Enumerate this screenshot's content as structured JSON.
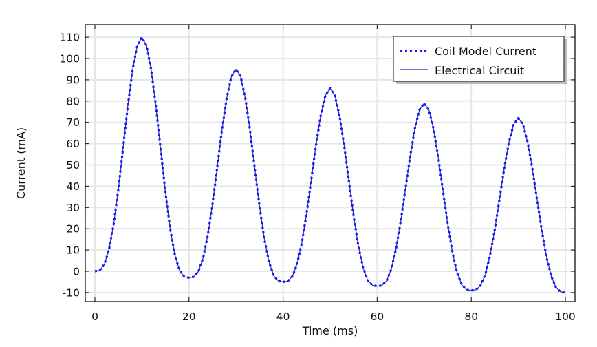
{
  "chart_data": {
    "type": "line",
    "title": "",
    "xlabel": "Time (ms)",
    "ylabel": "Current (mA)",
    "xlim": [
      -2,
      102
    ],
    "ylim": [
      -14.5,
      116
    ],
    "xticks": [
      0,
      20,
      40,
      60,
      80,
      100
    ],
    "yticks": [
      -10,
      0,
      10,
      20,
      30,
      40,
      50,
      60,
      70,
      80,
      90,
      100,
      110
    ],
    "grid": true,
    "legend_position": "top-right",
    "x": [
      0,
      1,
      2,
      3,
      4,
      5,
      6,
      7,
      8,
      9,
      10,
      11,
      12,
      13,
      14,
      15,
      16,
      17,
      18,
      19,
      20,
      21,
      22,
      23,
      24,
      25,
      26,
      27,
      28,
      29,
      30,
      31,
      32,
      33,
      34,
      35,
      36,
      37,
      38,
      39,
      40,
      41,
      42,
      43,
      44,
      45,
      46,
      47,
      48,
      49,
      50,
      51,
      52,
      53,
      54,
      55,
      56,
      57,
      58,
      59,
      60,
      61,
      62,
      63,
      64,
      65,
      66,
      67,
      68,
      69,
      70,
      71,
      72,
      73,
      74,
      75,
      76,
      77,
      78,
      79,
      80,
      81,
      82,
      83,
      84,
      85,
      86,
      87,
      88,
      89,
      90,
      91,
      92,
      93,
      94,
      95,
      96,
      97,
      98,
      99,
      100
    ],
    "series": [
      {
        "name": "Coil Model Current",
        "style": "dotted",
        "color": "#1414ff",
        "values": [
          0,
          0.4,
          3.2,
          10.3,
          22.3,
          38.9,
          58.2,
          77.8,
          94.6,
          106,
          110,
          105.9,
          94.2,
          76.9,
          56.8,
          37.0,
          19.9,
          7.6,
          0.3,
          -2.6,
          -3,
          -2.6,
          -0.1,
          6.2,
          16.9,
          31.7,
          48.9,
          66.3,
          81.3,
          91.4,
          95,
          91.4,
          81.0,
          65.7,
          48.0,
          30.4,
          15.3,
          4.4,
          -2.0,
          -4.6,
          -5,
          -4.7,
          -2.3,
          3.5,
          13.5,
          27.2,
          43.2,
          59.4,
          73.3,
          82.7,
          86,
          82.6,
          73.0,
          58.8,
          42.2,
          25.9,
          11.9,
          1.7,
          -4.3,
          -6.6,
          -7,
          -6.7,
          -4.5,
          1.0,
          10.5,
          23.4,
          38.5,
          53.8,
          67.0,
          75.9,
          79,
          75.8,
          66.7,
          53.3,
          37.6,
          22.1,
          8.9,
          -0.8,
          -6.4,
          -8.7,
          -9,
          -8.7,
          -6.6,
          -1.4,
          7.5,
          19.6,
          33.9,
          48.3,
          60.7,
          69.0,
          72,
          69.0,
          60.5,
          48.0,
          33.4,
          19.0,
          6.7,
          -2.3,
          -7.6,
          -9.7,
          -10
        ]
      },
      {
        "name": "Electrical Circuit",
        "style": "solid",
        "color": "#2a2ab0",
        "values": [
          0,
          0.4,
          3.2,
          10.3,
          22.3,
          38.9,
          58.2,
          77.8,
          94.6,
          106,
          110,
          105.9,
          94.2,
          76.9,
          56.8,
          37.0,
          19.9,
          7.6,
          0.3,
          -2.6,
          -3,
          -2.6,
          -0.1,
          6.2,
          16.9,
          31.7,
          48.9,
          66.3,
          81.3,
          91.4,
          95,
          91.4,
          81.0,
          65.7,
          48.0,
          30.4,
          15.3,
          4.4,
          -2.0,
          -4.6,
          -5,
          -4.7,
          -2.3,
          3.5,
          13.5,
          27.2,
          43.2,
          59.4,
          73.3,
          82.7,
          86,
          82.6,
          73.0,
          58.8,
          42.2,
          25.9,
          11.9,
          1.7,
          -4.3,
          -6.6,
          -7,
          -6.7,
          -4.5,
          1.0,
          10.5,
          23.4,
          38.5,
          53.8,
          67.0,
          75.9,
          79,
          75.8,
          66.7,
          53.3,
          37.6,
          22.1,
          8.9,
          -0.8,
          -6.4,
          -8.7,
          -9,
          -8.7,
          -6.6,
          -1.4,
          7.5,
          19.6,
          33.9,
          48.3,
          60.7,
          69.0,
          72,
          69.0,
          60.5,
          48.0,
          33.4,
          19.0,
          6.7,
          -2.3,
          -7.6,
          -9.7,
          -10
        ]
      }
    ]
  }
}
